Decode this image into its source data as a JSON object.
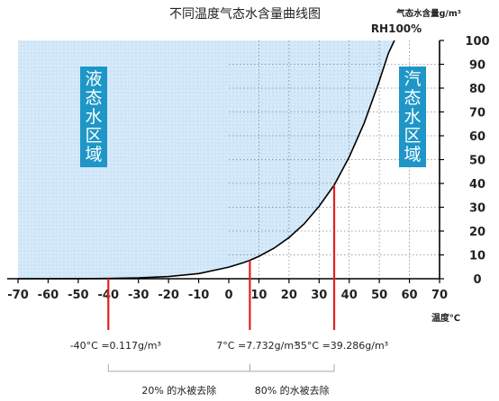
{
  "chart_data": {
    "type": "line",
    "title": "不同温度气态水含量曲线图",
    "ylabel": "气态水含量g/m³",
    "ylabel_sub": "RH100%",
    "xlabel": "温度℃",
    "xlim": [
      -70,
      70
    ],
    "ylim": [
      0,
      100
    ],
    "xticks": [
      -70,
      -60,
      -50,
      -40,
      -30,
      -20,
      -10,
      0,
      10,
      20,
      30,
      40,
      50,
      60,
      70
    ],
    "yticks": [
      0,
      10,
      20,
      30,
      40,
      50,
      60,
      70,
      80,
      90,
      100
    ],
    "grid": "dotted, right of 0℃",
    "series": [
      {
        "x": [
          -70,
          -50,
          -40,
          -30,
          -20,
          -10,
          0,
          5,
          7,
          10,
          15,
          20,
          25,
          30,
          35,
          40,
          45,
          50,
          53,
          55
        ],
        "y": [
          0.003,
          0.04,
          0.117,
          0.34,
          0.89,
          2.14,
          4.85,
          6.8,
          7.732,
          9.4,
          12.8,
          17.3,
          23.0,
          30.4,
          39.286,
          51.1,
          65.4,
          83.0,
          94.6,
          100
        ],
        "color": "#000000"
      }
    ],
    "regions": [
      {
        "label": "液态水区域",
        "side": "left",
        "fill": "#cfe6f8"
      },
      {
        "label": "汽态水区域",
        "side": "right"
      }
    ],
    "markers": [
      {
        "x": -40,
        "y": 0.117,
        "label": "-40°C =0.117g/m³",
        "color": "#e02020"
      },
      {
        "x": 7,
        "y": 7.732,
        "label": "7°C =7.732g/m³",
        "color": "#e02020"
      },
      {
        "x": 35,
        "y": 39.286,
        "label": "35°C =39.286g/m³",
        "color": "#e02020"
      }
    ],
    "brackets": [
      {
        "from": -40,
        "to": 7,
        "label": "20% 的水被去除"
      },
      {
        "from": 7,
        "to": 35,
        "label": "80% 的水被去除"
      }
    ]
  },
  "colors": {
    "region_box": "#1e96c8",
    "region_text": "#ffffff",
    "left_fill": "#cfe6f8",
    "marker": "#e02020"
  }
}
